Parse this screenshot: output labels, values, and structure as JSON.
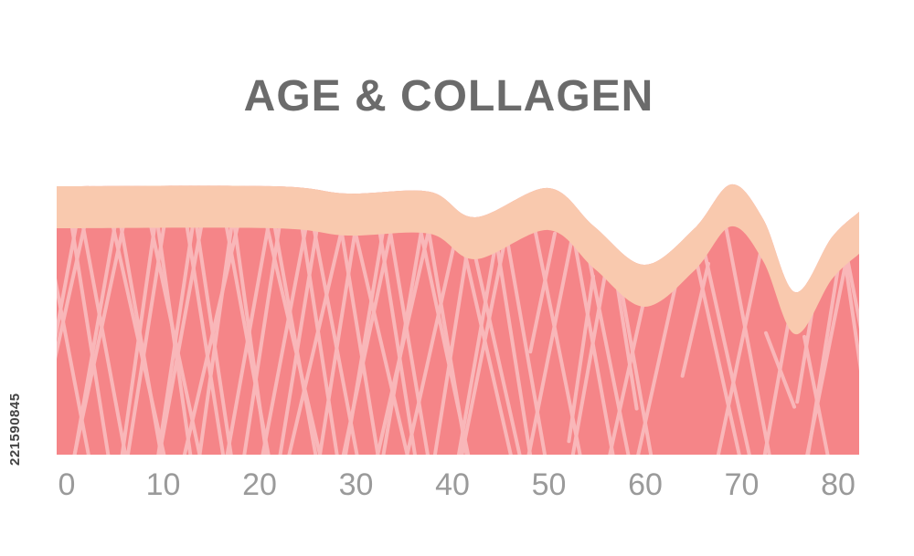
{
  "title": "AGE & COLLAGEN",
  "age_ticks": [
    "0",
    "10",
    "20",
    "30",
    "40",
    "50",
    "60",
    "70",
    "80"
  ],
  "stock_id": "221590845",
  "colors": {
    "title_text": "#6b6b6b",
    "tick_text": "#9a9a9a",
    "dermis": "#f58588",
    "collagen_fiber": "#f9b7b9",
    "epidermis": "#f9c9ae"
  }
}
